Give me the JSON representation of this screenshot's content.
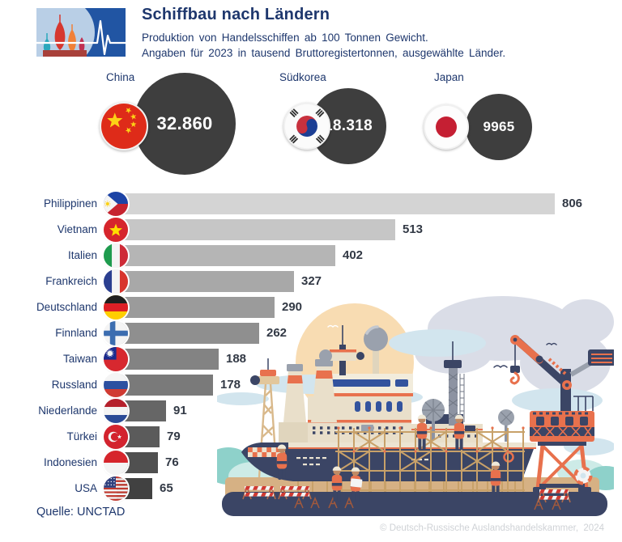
{
  "header": {
    "title": "Schiffbau nach Ländern",
    "subtitle": [
      "Produktion von Handelsschiffen ab 100 Tonnen Gewicht.",
      "Angaben für 2023 in tausend Bruttoregistertonnen, ausgewählte Länder."
    ]
  },
  "chart_data": {
    "type": "bar",
    "orientation": "horizontal",
    "title": "Schiffbau nach Ländern",
    "subtitle": "Produktion von Handelsschiffen ab 100 Tonnen Gewicht. Angaben für 2023 in tausend Bruttoregistertonnen, ausgewählte Länder.",
    "unit": "tausend Bruttoregistertonnen",
    "year": "2023",
    "highlight_circles": [
      {
        "label": "China",
        "value": 32860,
        "value_label": "32.860",
        "flag": "cn"
      },
      {
        "label": "Südkorea",
        "value": 18318,
        "value_label": "18.318",
        "flag": "kr"
      },
      {
        "label": "Japan",
        "value": 9965,
        "value_label": "9965",
        "flag": "jp"
      }
    ],
    "categories": [
      "Philippinen",
      "Vietnam",
      "Italien",
      "Frankreich",
      "Deutschland",
      "Finnland",
      "Taiwan",
      "Russland",
      "Niederlande",
      "Türkei",
      "Indonesien",
      "USA"
    ],
    "values": [
      806,
      513,
      402,
      327,
      290,
      262,
      188,
      178,
      91,
      79,
      76,
      65
    ],
    "value_labels": [
      "806",
      "513",
      "402",
      "327",
      "290",
      "262",
      "188",
      "178",
      "91",
      "79",
      "76",
      "65"
    ],
    "flags": [
      "ph",
      "vn",
      "it",
      "fr",
      "de",
      "fi",
      "tw",
      "ru",
      "nl",
      "tr",
      "id",
      "us"
    ],
    "xlim": [
      0,
      806
    ],
    "grid": false,
    "legend": false,
    "bar_colors": [
      "#d4d4d4",
      "#c6c6c6",
      "#b5b5b5",
      "#a8a8a8",
      "#9b9b9b",
      "#8f8f8f",
      "#838383",
      "#7a7a7a",
      "#666666",
      "#5b5b5b",
      "#505050",
      "#414141"
    ]
  },
  "footer": {
    "source": "Quelle: UNCTAD",
    "copyright": "© Deutsch-Russische Auslandshandelskammer,  2024"
  },
  "colors": {
    "navy": "#1e376d",
    "value-color": "#323945",
    "circle-fill": "#3e3e3e",
    "copyright": "#cfd2d6",
    "bg": "#ffffff"
  },
  "icons": {
    "logo": "st-basils-cathedral-pulse-logo",
    "illustration": "shipyard-scene"
  }
}
